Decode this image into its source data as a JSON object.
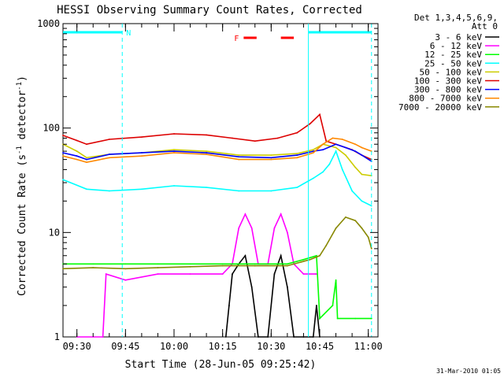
{
  "chart_data": {
    "type": "line",
    "title": "HESSI Observing Summary Count Rates, Corrected",
    "xlabel": "Start Time (28-Jun-05 09:25:42)",
    "ylabel": "Corrected Count Rate (s",
    "ylabel_sup1": "-1",
    "ylabel_mid": " detector",
    "ylabel_sup2": "-1",
    "ylabel_end": ")",
    "y_scale": "log",
    "ylim": [
      1,
      1000
    ],
    "xlim": [
      "09:25:42",
      "11:03:00"
    ],
    "x_ticks": [
      "09:30",
      "09:45",
      "10:00",
      "10:15",
      "10:30",
      "10:45",
      "11:00"
    ],
    "y_ticks": [
      "1",
      "10",
      "100",
      "1000"
    ],
    "legend_header": [
      "Det 1,3,4,5,6,9,",
      "Att 0"
    ],
    "legend_position": "right",
    "series": [
      {
        "name": "3 - 6 keV",
        "color": "#000000",
        "points": [
          [
            "10:16",
            1
          ],
          [
            "10:17",
            2
          ],
          [
            "10:18",
            4
          ],
          [
            "10:20",
            5
          ],
          [
            "10:22",
            6
          ],
          [
            "10:24",
            3
          ],
          [
            "10:26",
            1
          ],
          [
            "10:29",
            1
          ],
          [
            "10:31",
            4
          ],
          [
            "10:33",
            6
          ],
          [
            "10:35",
            3
          ],
          [
            "10:37",
            1
          ],
          [
            "10:40",
            1
          ],
          [
            "10:43",
            1
          ],
          [
            "10:44",
            2
          ],
          [
            "10:45",
            1
          ]
        ]
      },
      {
        "name": "6 - 12 keV",
        "color": "#ff00ff",
        "points": [
          [
            "09:30",
            1
          ],
          [
            "09:38",
            1
          ],
          [
            "09:39",
            4
          ],
          [
            "09:45",
            3.5
          ],
          [
            "09:55",
            4
          ],
          [
            "10:05",
            4
          ],
          [
            "10:15",
            4
          ],
          [
            "10:18",
            5
          ],
          [
            "10:20",
            11
          ],
          [
            "10:22",
            15
          ],
          [
            "10:24",
            11
          ],
          [
            "10:26",
            5
          ],
          [
            "10:29",
            5
          ],
          [
            "10:31",
            11
          ],
          [
            "10:33",
            15
          ],
          [
            "10:35",
            10
          ],
          [
            "10:37",
            5
          ],
          [
            "10:40",
            4
          ],
          [
            "10:44",
            4
          ]
        ]
      },
      {
        "name": "12 - 25 keV",
        "color": "#00ff00",
        "points": [
          [
            "09:25:42",
            5
          ],
          [
            "09:35",
            5
          ],
          [
            "09:45",
            5
          ],
          [
            "09:55",
            5
          ],
          [
            "10:05",
            5
          ],
          [
            "10:15",
            5
          ],
          [
            "10:25",
            5
          ],
          [
            "10:35",
            5
          ],
          [
            "10:40",
            5.5
          ],
          [
            "10:44",
            6
          ],
          [
            "10:45",
            1.5
          ],
          [
            "10:49",
            2
          ],
          [
            "10:50",
            3.5
          ],
          [
            "10:50:30",
            1.5
          ],
          [
            "10:56",
            1.5
          ],
          [
            "11:01",
            1.5
          ]
        ]
      },
      {
        "name": "25 - 50 keV",
        "color": "#00ffff",
        "points": [
          [
            "09:25:42",
            32
          ],
          [
            "09:28",
            30
          ],
          [
            "09:33",
            26
          ],
          [
            "09:40",
            25
          ],
          [
            "09:50",
            26
          ],
          [
            "10:00",
            28
          ],
          [
            "10:10",
            27
          ],
          [
            "10:20",
            25
          ],
          [
            "10:30",
            25
          ],
          [
            "10:38",
            27
          ],
          [
            "10:43",
            33
          ],
          [
            "10:46",
            38
          ],
          [
            "10:48",
            45
          ],
          [
            "10:50",
            60
          ],
          [
            "10:52",
            40
          ],
          [
            "10:55",
            25
          ],
          [
            "10:58",
            20
          ],
          [
            "11:01",
            18
          ]
        ]
      },
      {
        "name": "50 - 100 keV",
        "color": "#cccc00",
        "points": [
          [
            "09:25:42",
            70
          ],
          [
            "09:30",
            60
          ],
          [
            "09:33",
            52
          ],
          [
            "09:40",
            56
          ],
          [
            "09:50",
            58
          ],
          [
            "10:00",
            62
          ],
          [
            "10:10",
            60
          ],
          [
            "10:20",
            55
          ],
          [
            "10:30",
            55
          ],
          [
            "10:38",
            57
          ],
          [
            "10:43",
            62
          ],
          [
            "10:46",
            70
          ],
          [
            "10:50",
            65
          ],
          [
            "10:53",
            55
          ],
          [
            "10:56",
            42
          ],
          [
            "10:58",
            36
          ],
          [
            "11:01",
            35
          ]
        ]
      },
      {
        "name": "100 - 300 keV",
        "color": "#dd0000",
        "points": [
          [
            "09:25:42",
            85
          ],
          [
            "09:30",
            76
          ],
          [
            "09:33",
            70
          ],
          [
            "09:40",
            78
          ],
          [
            "09:50",
            82
          ],
          [
            "10:00",
            88
          ],
          [
            "10:10",
            86
          ],
          [
            "10:18",
            80
          ],
          [
            "10:25",
            75
          ],
          [
            "10:32",
            80
          ],
          [
            "10:38",
            90
          ],
          [
            "10:42",
            110
          ],
          [
            "10:45",
            135
          ],
          [
            "10:47",
            75
          ],
          [
            "10:50",
            70
          ],
          [
            "10:55",
            62
          ],
          [
            "10:58",
            55
          ],
          [
            "11:01",
            50
          ]
        ]
      },
      {
        "name": "300 - 800 keV",
        "color": "#0000ff",
        "points": [
          [
            "09:25:42",
            58
          ],
          [
            "09:30",
            54
          ],
          [
            "09:33",
            50
          ],
          [
            "09:40",
            56
          ],
          [
            "09:50",
            58
          ],
          [
            "10:00",
            60
          ],
          [
            "10:10",
            58
          ],
          [
            "10:20",
            53
          ],
          [
            "10:30",
            52
          ],
          [
            "10:38",
            55
          ],
          [
            "10:43",
            60
          ],
          [
            "10:46",
            62
          ],
          [
            "10:50",
            70
          ],
          [
            "10:53",
            65
          ],
          [
            "10:56",
            60
          ],
          [
            "10:58",
            55
          ],
          [
            "11:01",
            48
          ]
        ]
      },
      {
        "name": "800 - 7000 keV",
        "color": "#ff8800",
        "points": [
          [
            "09:25:42",
            54
          ],
          [
            "09:30",
            50
          ],
          [
            "09:33",
            47
          ],
          [
            "09:40",
            52
          ],
          [
            "09:50",
            54
          ],
          [
            "10:00",
            58
          ],
          [
            "10:10",
            56
          ],
          [
            "10:20",
            50
          ],
          [
            "10:30",
            50
          ],
          [
            "10:38",
            52
          ],
          [
            "10:43",
            58
          ],
          [
            "10:46",
            70
          ],
          [
            "10:49",
            80
          ],
          [
            "10:52",
            78
          ],
          [
            "10:56",
            70
          ],
          [
            "10:58",
            65
          ],
          [
            "11:01",
            60
          ]
        ]
      },
      {
        "name": "7000 - 20000 keV",
        "color": "#888800",
        "points": [
          [
            "09:25:42",
            4.5
          ],
          [
            "09:35",
            4.6
          ],
          [
            "09:45",
            4.5
          ],
          [
            "09:55",
            4.6
          ],
          [
            "10:05",
            4.7
          ],
          [
            "10:15",
            4.8
          ],
          [
            "10:25",
            4.8
          ],
          [
            "10:35",
            4.8
          ],
          [
            "10:42",
            5.5
          ],
          [
            "10:45",
            6
          ],
          [
            "10:47",
            7.5
          ],
          [
            "10:50",
            11
          ],
          [
            "10:53",
            14
          ],
          [
            "10:56",
            13
          ],
          [
            "10:58",
            11
          ],
          [
            "11:00",
            9
          ],
          [
            "11:01",
            7
          ]
        ]
      }
    ],
    "overlay_markers": {
      "night_label": "N",
      "flare_label": "F",
      "night_color": "#00ffff",
      "flare_color": "#ff0000",
      "night_bars": [
        [
          "09:25:42",
          "09:44:00"
        ],
        [
          "10:41:30",
          "11:01:00"
        ]
      ],
      "flare_dashes": [
        [
          "10:21:30",
          "10:25:30"
        ],
        [
          "10:33:00",
          "10:37:00"
        ]
      ],
      "night_edges": [
        "09:44:00",
        "10:41:30",
        "11:01:00"
      ]
    },
    "footer_date": "31-Mar-2010 01:05"
  }
}
